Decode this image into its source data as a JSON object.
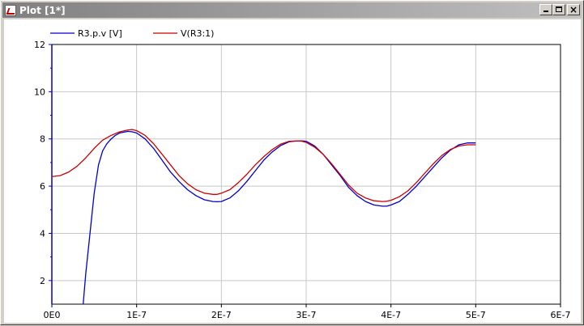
{
  "window": {
    "title": "Plot [1*]",
    "icon": "plot-window-icon",
    "buttons": {
      "minimize_icon": "minimize-icon",
      "maximize_icon": "maximize-icon",
      "close_icon": "close-icon"
    }
  },
  "chart_data": {
    "type": "line",
    "xlim": [
      0,
      6e-07
    ],
    "ylim": [
      1,
      12
    ],
    "x_ticks": [
      0,
      1e-07,
      2e-07,
      3e-07,
      4e-07,
      5e-07,
      6e-07
    ],
    "x_tick_labels": [
      "0E0",
      "1E-7",
      "2E-7",
      "3E-7",
      "4E-7",
      "5E-7",
      "6E-7"
    ],
    "y_ticks": [
      2,
      4,
      6,
      8,
      10,
      12
    ],
    "y_tick_labels": [
      "2",
      "4",
      "6",
      "8",
      "10",
      "12"
    ],
    "grid": true,
    "legend_position": "top-left",
    "series": [
      {
        "name": "R3.p.v [V]",
        "color": "#0000cc",
        "x": [
          3.7e-08,
          4e-08,
          4.5e-08,
          5e-08,
          5.5e-08,
          6e-08,
          6.5e-08,
          7e-08,
          7.5e-08,
          8e-08,
          9e-08,
          9.5e-08,
          1e-07,
          1.1e-07,
          1.2e-07,
          1.3e-07,
          1.4e-07,
          1.5e-07,
          1.6e-07,
          1.7e-07,
          1.8e-07,
          1.9e-07,
          1.95e-07,
          2e-07,
          2.1e-07,
          2.2e-07,
          2.3e-07,
          2.4e-07,
          2.5e-07,
          2.6e-07,
          2.7e-07,
          2.8e-07,
          2.9e-07,
          2.95e-07,
          3e-07,
          3.1e-07,
          3.2e-07,
          3.3e-07,
          3.4e-07,
          3.5e-07,
          3.6e-07,
          3.7e-07,
          3.8e-07,
          3.9e-07,
          3.95e-07,
          4e-07,
          4.1e-07,
          4.2e-07,
          4.3e-07,
          4.4e-07,
          4.5e-07,
          4.6e-07,
          4.7e-07,
          4.8e-07,
          4.9e-07,
          5e-07
        ],
        "y": [
          1.0,
          2.3,
          4.0,
          5.7,
          6.9,
          7.5,
          7.8,
          8.0,
          8.15,
          8.25,
          8.32,
          8.3,
          8.25,
          8.0,
          7.6,
          7.1,
          6.6,
          6.2,
          5.85,
          5.6,
          5.42,
          5.35,
          5.34,
          5.35,
          5.5,
          5.8,
          6.2,
          6.65,
          7.1,
          7.45,
          7.72,
          7.88,
          7.92,
          7.92,
          7.9,
          7.7,
          7.35,
          6.9,
          6.45,
          5.95,
          5.6,
          5.35,
          5.2,
          5.15,
          5.15,
          5.2,
          5.35,
          5.65,
          6.0,
          6.4,
          6.8,
          7.2,
          7.52,
          7.75,
          7.83,
          7.83
        ]
      },
      {
        "name": "V(R3:1)",
        "color": "#cc0000",
        "x": [
          0,
          1e-08,
          2e-08,
          3e-08,
          4e-08,
          5e-08,
          6e-08,
          7e-08,
          8e-08,
          9e-08,
          9.5e-08,
          1e-07,
          1.1e-07,
          1.2e-07,
          1.3e-07,
          1.4e-07,
          1.5e-07,
          1.6e-07,
          1.7e-07,
          1.8e-07,
          1.9e-07,
          1.95e-07,
          2e-07,
          2.1e-07,
          2.2e-07,
          2.3e-07,
          2.4e-07,
          2.5e-07,
          2.6e-07,
          2.7e-07,
          2.8e-07,
          2.9e-07,
          2.95e-07,
          3e-07,
          3.1e-07,
          3.2e-07,
          3.3e-07,
          3.4e-07,
          3.5e-07,
          3.6e-07,
          3.7e-07,
          3.8e-07,
          3.9e-07,
          3.95e-07,
          4e-07,
          4.1e-07,
          4.2e-07,
          4.3e-07,
          4.4e-07,
          4.5e-07,
          4.6e-07,
          4.7e-07,
          4.8e-07,
          4.9e-07,
          5e-07
        ],
        "y": [
          6.4,
          6.45,
          6.6,
          6.85,
          7.2,
          7.6,
          7.95,
          8.15,
          8.3,
          8.38,
          8.4,
          8.35,
          8.15,
          7.8,
          7.35,
          6.9,
          6.45,
          6.1,
          5.85,
          5.7,
          5.65,
          5.65,
          5.7,
          5.85,
          6.15,
          6.5,
          6.9,
          7.25,
          7.55,
          7.78,
          7.9,
          7.92,
          7.9,
          7.85,
          7.65,
          7.35,
          6.95,
          6.5,
          6.05,
          5.7,
          5.5,
          5.38,
          5.35,
          5.36,
          5.4,
          5.55,
          5.8,
          6.15,
          6.55,
          6.95,
          7.3,
          7.55,
          7.7,
          7.75,
          7.75
        ]
      }
    ]
  }
}
